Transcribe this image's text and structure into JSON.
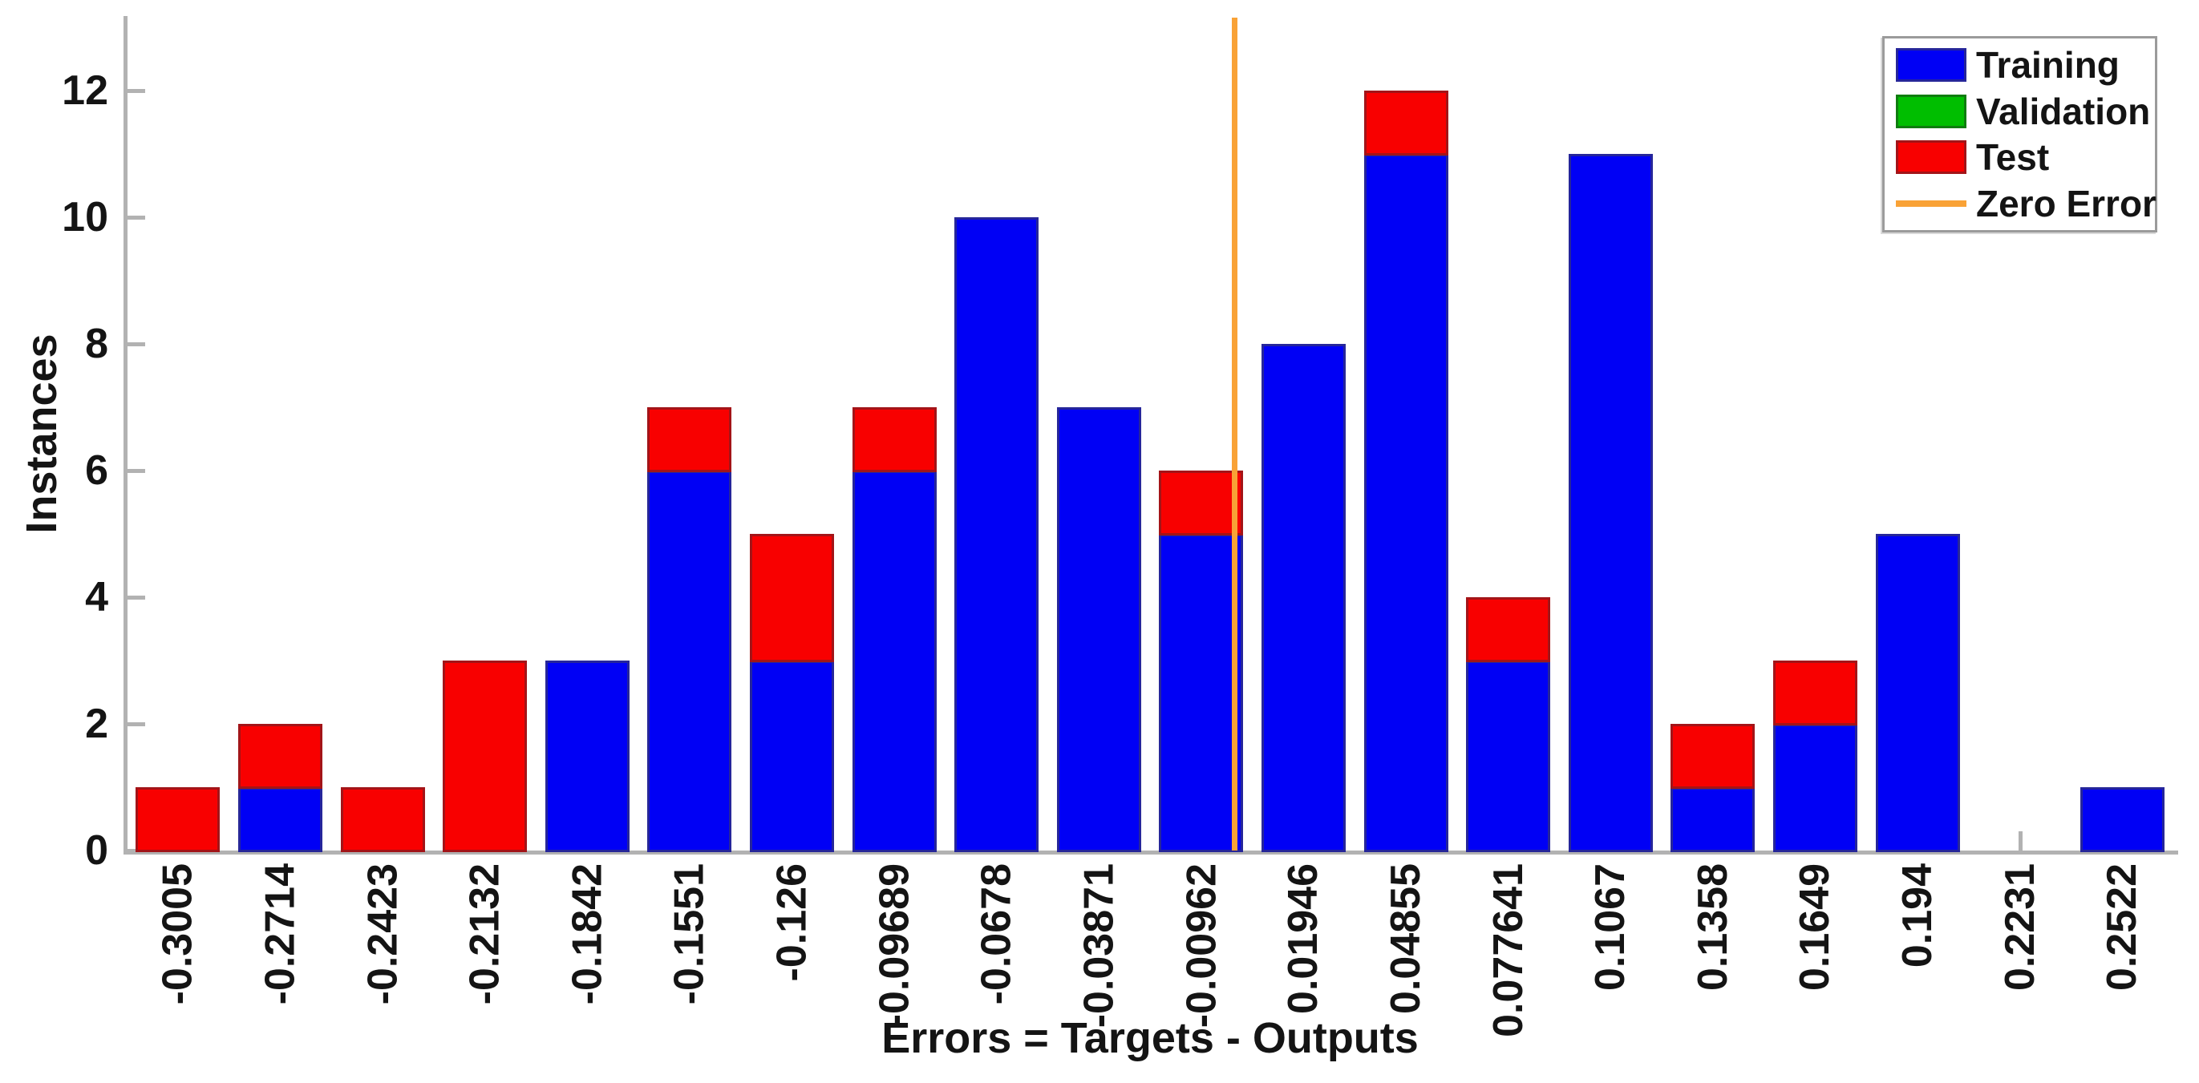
{
  "figure": {
    "ylabel": "Instances",
    "xlabel": "Errors = Targets - Outputs"
  },
  "legend": {
    "position": "top-right",
    "items": [
      {
        "label": "Training",
        "type": "patch",
        "color": "#0000F5",
        "edge": "#26269A"
      },
      {
        "label": "Validation",
        "type": "patch",
        "color": "#00BE00",
        "edge": "#0F7D0F"
      },
      {
        "label": "Test",
        "type": "patch",
        "color": "#F80000",
        "edge": "#A31418"
      },
      {
        "label": "Zero Error",
        "type": "line",
        "color": "#F9A236"
      }
    ]
  },
  "colors": {
    "axis": "#B2B2B2",
    "text": "#141414",
    "background": "#FFFFFF",
    "training": "#0000F5",
    "validation": "#00BE00",
    "test": "#F80000",
    "zero_error": "#F9A236"
  },
  "chart_data": {
    "type": "bar",
    "stacked": true,
    "title": "",
    "xlabel": "Errors = Targets - Outputs",
    "ylabel": "Instances",
    "categories": [
      "-0.3005",
      "-0.2714",
      "-0.2423",
      "-0.2132",
      "-0.1842",
      "-0.1551",
      "-0.126",
      "-0.09689",
      "-0.0678",
      "-0.03871",
      "-0.00962",
      "0.01946",
      "0.04855",
      "0.077641",
      "0.1067",
      "0.1358",
      "0.1649",
      "0.194",
      "0.2231",
      "0.2522"
    ],
    "bin_centers": [
      -0.3005,
      -0.2714,
      -0.2423,
      -0.2132,
      -0.1842,
      -0.1551,
      -0.126,
      -0.09689,
      -0.0678,
      -0.03871,
      -0.00962,
      0.01946,
      0.04855,
      0.077641,
      0.1067,
      0.1358,
      0.1649,
      0.194,
      0.2231,
      0.2522
    ],
    "bin_width": 0.0291,
    "series": [
      {
        "name": "Training",
        "color": "#0000F5",
        "edge": "#26269A",
        "values": [
          0,
          1,
          0,
          0,
          3,
          6,
          3,
          6,
          10,
          7,
          5,
          8,
          11,
          3,
          11,
          1,
          2,
          5,
          0,
          1
        ]
      },
      {
        "name": "Validation",
        "color": "#00BE00",
        "edge": "#0F7D0F",
        "values": [
          0,
          0,
          0,
          0,
          0,
          0,
          0,
          0,
          0,
          0,
          0,
          0,
          0,
          0,
          0,
          0,
          0,
          0,
          0,
          0
        ]
      },
      {
        "name": "Test",
        "color": "#F80000",
        "edge": "#A31418",
        "values": [
          1,
          1,
          1,
          3,
          0,
          1,
          2,
          1,
          0,
          0,
          1,
          0,
          1,
          1,
          0,
          1,
          1,
          0,
          0,
          0
        ]
      }
    ],
    "totals": [
      1,
      2,
      1,
      3,
      3,
      7,
      5,
      7,
      10,
      7,
      6,
      8,
      12,
      4,
      11,
      2,
      3,
      5,
      0,
      1
    ],
    "zero_error_line": {
      "x": 0,
      "label": "Zero Error",
      "color": "#F9A236"
    },
    "y_ticks": [
      0,
      2,
      4,
      6,
      8,
      10,
      12
    ],
    "ylim": [
      0,
      13.15
    ],
    "grid": false,
    "legend_position": "top-right",
    "legend_entries": [
      "Training",
      "Validation",
      "Test",
      "Zero Error"
    ]
  }
}
